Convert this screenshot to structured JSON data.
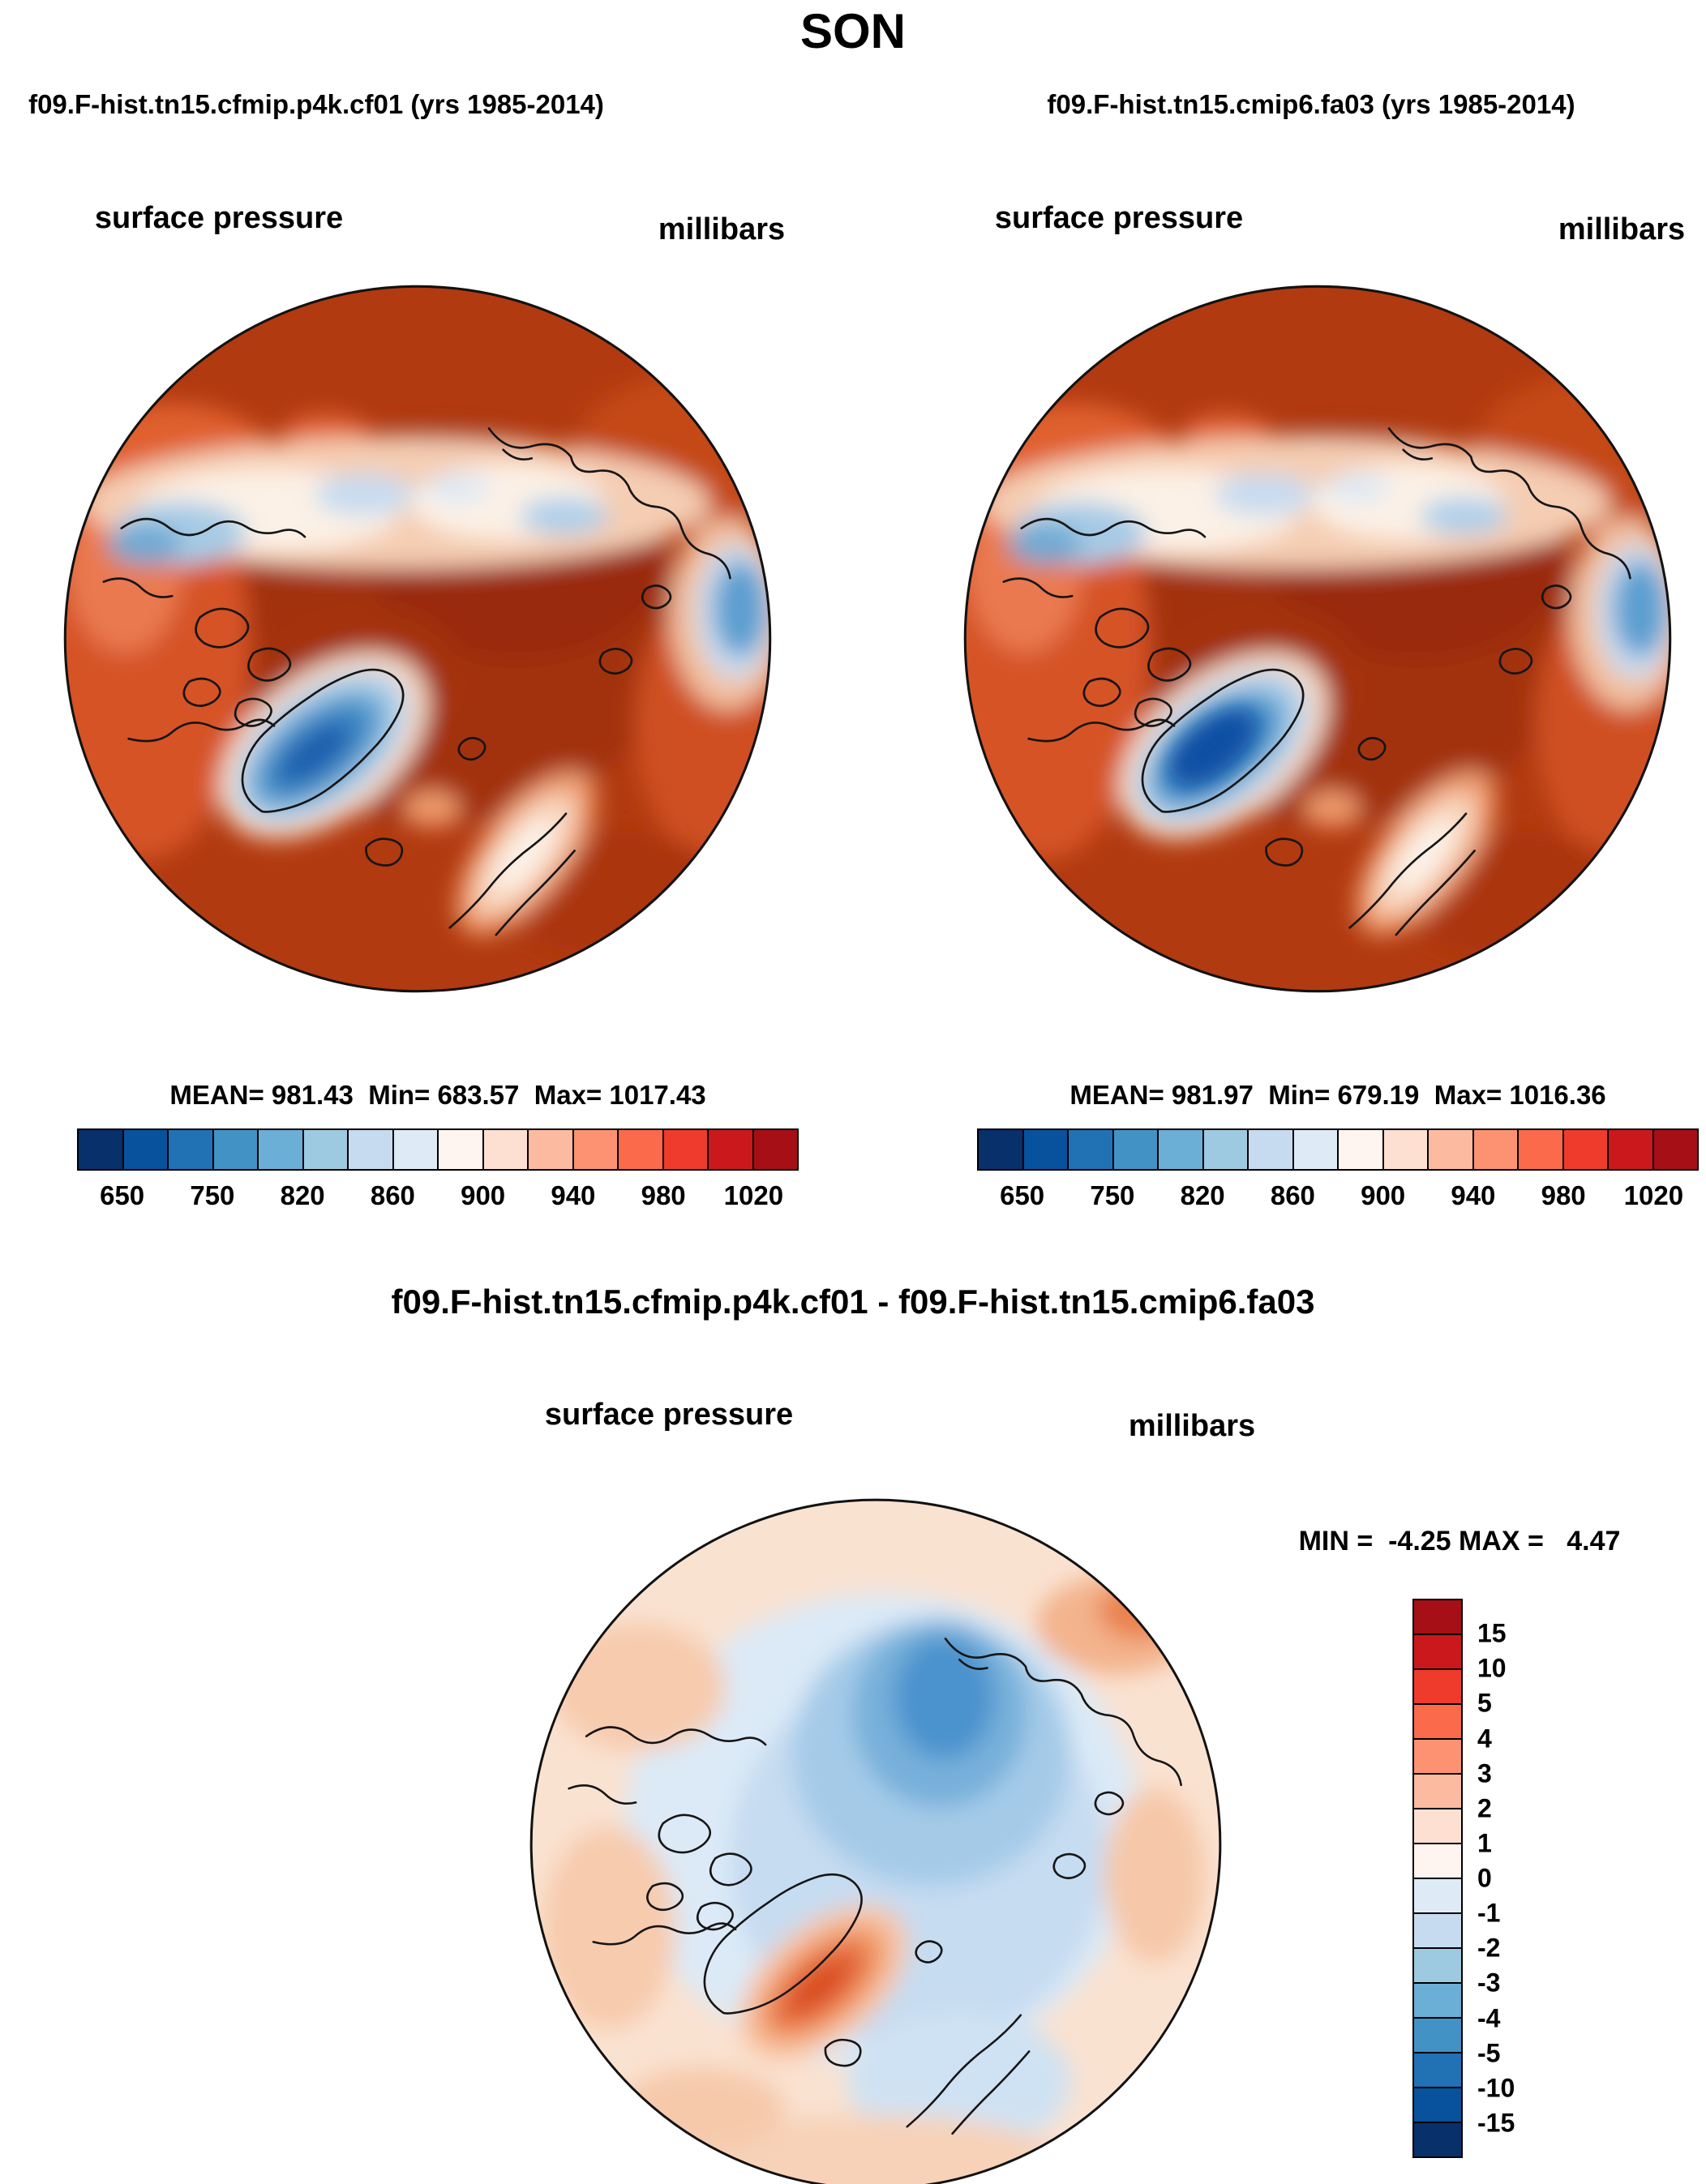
{
  "page_title": "SON",
  "left_panel": {
    "title": "f09.F-hist.tn15.cfmip.p4k.cf01 (yrs 1985-2014)",
    "field": "surface pressure",
    "units": "millibars",
    "stats": "MEAN= 981.43  Min= 683.57  Max= 1017.43"
  },
  "right_panel": {
    "title": "f09.F-hist.tn15.cmip6.fa03 (yrs 1985-2014)",
    "field": "surface pressure",
    "units": "millibars",
    "stats": "MEAN= 981.97  Min= 679.19  Max= 1016.36"
  },
  "diff_panel": {
    "title": "f09.F-hist.tn15.cfmip.p4k.cf01 - f09.F-hist.tn15.cmip6.fa03",
    "field": "surface pressure",
    "units": "millibars",
    "minmax": "MIN =  -4.25 MAX =   4.47"
  },
  "pressure_colorbar": {
    "colors": [
      "#08306b",
      "#08519c",
      "#2171b5",
      "#4292c6",
      "#6baed6",
      "#9ecae1",
      "#c6dbef",
      "#deebf7",
      "#fff5f0",
      "#fee0d2",
      "#fcbba1",
      "#fc9272",
      "#fb6a4a",
      "#ef3b2c",
      "#cb181d",
      "#a50f15"
    ],
    "ticks": [
      "650",
      "750",
      "820",
      "860",
      "900",
      "940",
      "980",
      "1020"
    ]
  },
  "diff_colorbar": {
    "colors": [
      "#a50f15",
      "#cb181d",
      "#ef3b2c",
      "#fb6a4a",
      "#fc9272",
      "#fcbba1",
      "#fee0d2",
      "#fff5f0",
      "#deebf7",
      "#c6dbef",
      "#9ecae1",
      "#6baed6",
      "#4292c6",
      "#2171b5",
      "#08519c",
      "#08306b"
    ],
    "ticks": [
      "15",
      "10",
      "5",
      "4",
      "3",
      "2",
      "1",
      "0",
      "-1",
      "-2",
      "-3",
      "-4",
      "-5",
      "-10",
      "-15"
    ]
  },
  "chart_data": [
    {
      "type": "heatmap",
      "panel": "top-left",
      "season": "SON",
      "title": "f09.F-hist.tn15.cfmip.p4k.cf01 (yrs 1985-2014)",
      "variable": "surface pressure",
      "units": "millibars",
      "projection": "north polar stereographic",
      "mean": 981.43,
      "min": 683.57,
      "max": 1017.43,
      "colorbar_tick_labels": [
        650,
        750,
        820,
        860,
        900,
        940,
        980,
        1020
      ],
      "colorbar_n_segments": 16,
      "palette": "dark blue to dark red",
      "notes": "High pressure (dark red ~1000-1020 mb) over Arctic ocean and land; low values (blue ~700-860 mb) over Greenland ice sheet; pale band (~900 mb) across Alaska/Bering and Siberian coastal mountains; pale patch over Scandinavia"
    },
    {
      "type": "heatmap",
      "panel": "top-right",
      "season": "SON",
      "title": "f09.F-hist.tn15.cmip6.fa03 (yrs 1985-2014)",
      "variable": "surface pressure",
      "units": "millibars",
      "projection": "north polar stereographic",
      "mean": 981.97,
      "min": 679.19,
      "max": 1016.36,
      "colorbar_tick_labels": [
        650,
        750,
        820,
        860,
        900,
        940,
        980,
        1020
      ],
      "colorbar_n_segments": 16,
      "palette": "dark blue to dark red",
      "notes": "Nearly identical spatial pattern to top-left panel"
    },
    {
      "type": "heatmap",
      "panel": "bottom-difference",
      "season": "SON",
      "title": "f09.F-hist.tn15.cfmip.p4k.cf01 - f09.F-hist.tn15.cmip6.fa03",
      "variable": "surface pressure",
      "units": "millibars",
      "projection": "north polar stereographic",
      "min": -4.25,
      "max": 4.47,
      "colorbar_tick_labels": [
        15,
        10,
        5,
        4,
        3,
        2,
        1,
        0,
        -1,
        -2,
        -3,
        -4,
        -5,
        -10,
        -15
      ],
      "colorbar_n_segments": 16,
      "palette": "dark red (positive) to dark blue (negative), vertical bar",
      "notes": "Negative differences (blue, down to ~ -4) centered over central Arctic / Siberian side; positive differences (orange, up to ~ +4) over Greenland; weak positive (pale red ~ +1) around mid-latitude rim"
    }
  ]
}
